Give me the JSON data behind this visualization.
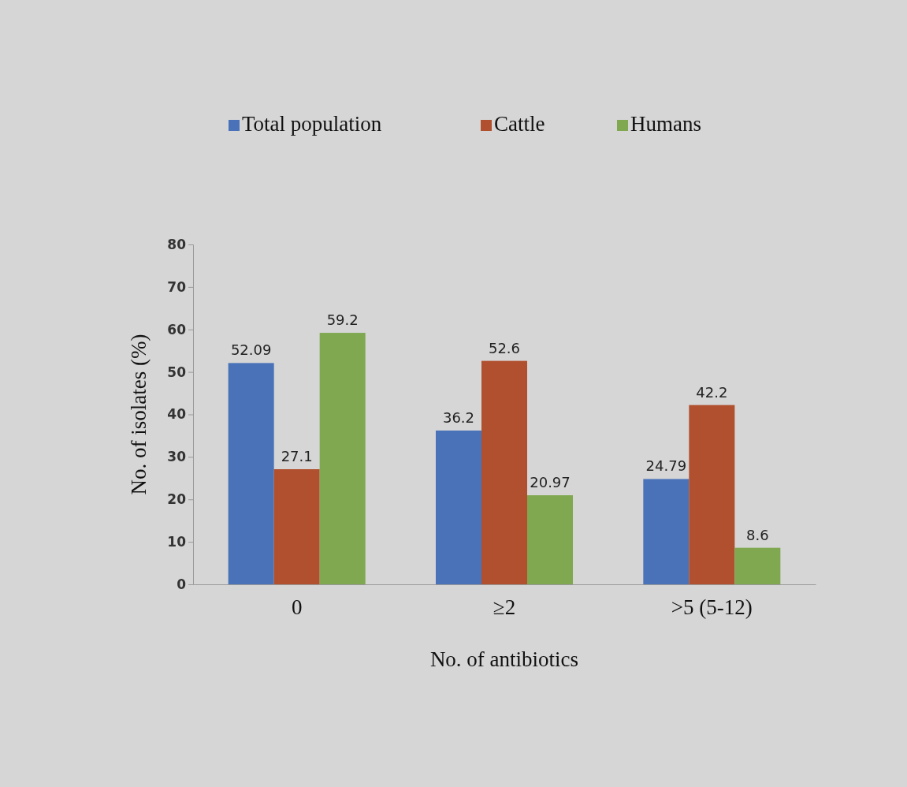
{
  "chart_data": {
    "type": "bar",
    "xlabel": "No. of antibiotics",
    "ylabel": "No. of isolates (%)",
    "categories": [
      "0",
      "≥2",
      ">5 (5-12)"
    ],
    "series": [
      {
        "name": "Total population",
        "color": "#4a72b8",
        "values": [
          52.09,
          36.2,
          24.79
        ]
      },
      {
        "name": "Cattle",
        "color": "#b0502f",
        "values": [
          27.1,
          52.6,
          42.2
        ]
      },
      {
        "name": "Humans",
        "color": "#7fa850",
        "values": [
          59.2,
          20.97,
          8.6
        ]
      }
    ],
    "ylim": [
      0,
      80
    ],
    "yticks": [
      0,
      10,
      20,
      30,
      40,
      50,
      60,
      70,
      80
    ],
    "data_labels": true,
    "legend": "top",
    "grid": false
  }
}
